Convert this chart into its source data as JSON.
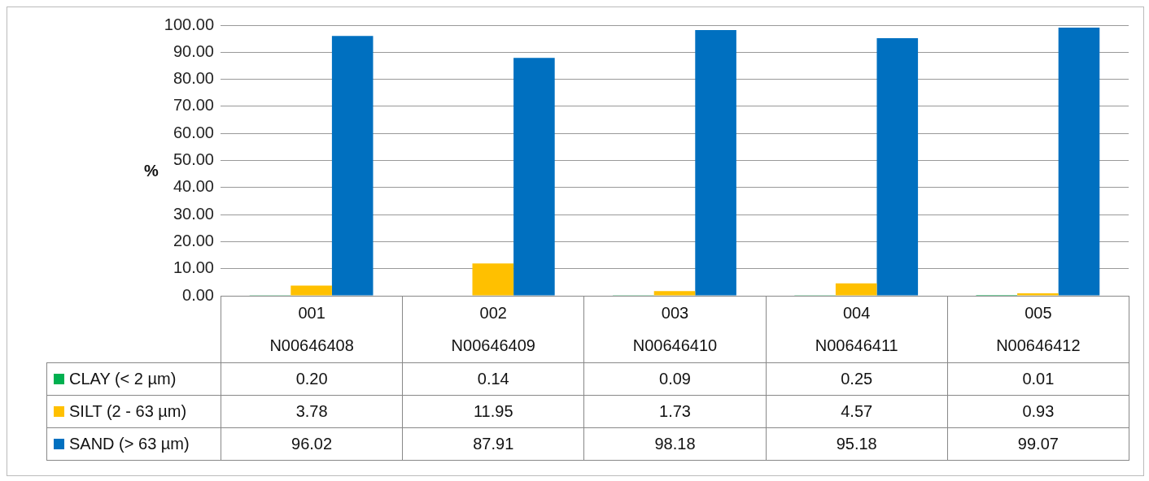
{
  "chart_data": {
    "type": "bar",
    "ylabel": "%",
    "categories": [
      "001\nN00646408",
      "002\nN00646409",
      "003\nN00646410",
      "004\nN00646411",
      "005\nN00646412"
    ],
    "series": [
      {
        "name": "CLAY (< 2 µm)",
        "color": "#00b050",
        "values": [
          0.2,
          0.14,
          0.09,
          0.25,
          0.01
        ],
        "value_labels": [
          "0.20",
          "0.14",
          "0.09",
          "0.25",
          "0.01"
        ]
      },
      {
        "name": "SILT (2 - 63 µm)",
        "color": "#ffc000",
        "values": [
          3.78,
          11.95,
          1.73,
          4.57,
          0.93
        ],
        "value_labels": [
          "3.78",
          "11.95",
          "1.73",
          "4.57",
          "0.93"
        ]
      },
      {
        "name": "SAND (> 63 µm)",
        "color": "#0070c0",
        "values": [
          96.02,
          87.91,
          98.18,
          95.18,
          99.07
        ],
        "value_labels": [
          "96.02",
          "87.91",
          "98.18",
          "95.18",
          "99.07"
        ]
      }
    ],
    "ylim": [
      0,
      100
    ],
    "yticks": [
      {
        "value": 0,
        "label": "0.00"
      },
      {
        "value": 10,
        "label": "10.00"
      },
      {
        "value": 20,
        "label": "20.00"
      },
      {
        "value": 30,
        "label": "30.00"
      },
      {
        "value": 40,
        "label": "40.00"
      },
      {
        "value": 50,
        "label": "50.00"
      },
      {
        "value": 60,
        "label": "60.00"
      },
      {
        "value": 70,
        "label": "70.00"
      },
      {
        "value": 80,
        "label": "80.00"
      },
      {
        "value": 90,
        "label": "90.00"
      },
      {
        "value": 100,
        "label": "100.00"
      }
    ],
    "grid": "y",
    "legend": "bottom"
  }
}
